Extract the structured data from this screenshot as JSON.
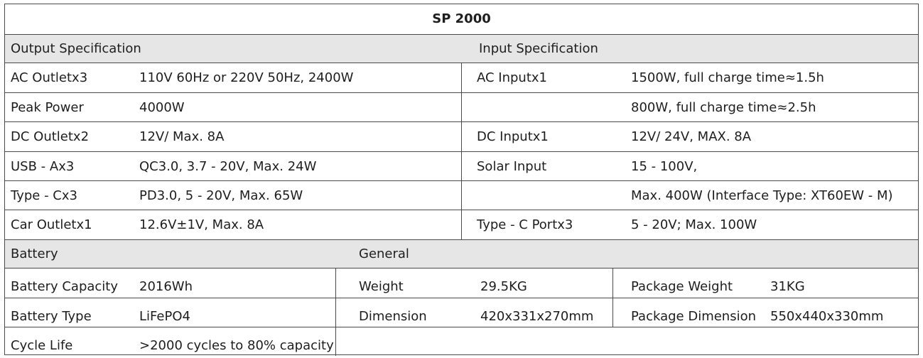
{
  "title": "SP 2000",
  "output": {
    "heading": "Output Specification",
    "rows": [
      {
        "label": "AC Outletx3",
        "value": "110V 60Hz or 220V 50Hz, 2400W"
      },
      {
        "label": "Peak Power",
        "value": "4000W"
      },
      {
        "label": "DC Outletx2",
        "value": "12V/ Max. 8A"
      },
      {
        "label": "USB - Ax3",
        "value": "QC3.0, 3.7 - 20V, Max. 24W"
      },
      {
        "label": "Type - Cx3",
        "value": "PD3.0, 5 - 20V, Max. 65W"
      },
      {
        "label": "Car Outletx1",
        "value": "12.6V±1V, Max. 8A"
      }
    ]
  },
  "input": {
    "heading": "Input Specification",
    "rows": [
      {
        "label": "AC Inputx1",
        "value": "1500W, full charge time≈1.5h"
      },
      {
        "label": "",
        "value": "800W, full charge time≈2.5h"
      },
      {
        "label": "DC Inputx1",
        "value": "12V/ 24V, MAX. 8A"
      },
      {
        "label": "Solar Input",
        "value": "15 - 100V,"
      },
      {
        "label": "",
        "value": "Max. 400W (Interface Type: XT60EW - M)"
      },
      {
        "label": "Type - C Portx3",
        "value": "5 - 20V; Max. 100W"
      }
    ]
  },
  "battery": {
    "heading": "Battery",
    "rows": [
      {
        "label": "Battery Capacity",
        "value": "2016Wh"
      },
      {
        "label": "Battery Type",
        "value": "LiFePO4"
      },
      {
        "label": "Cycle Life",
        "value": ">2000 cycles to 80% capacity"
      }
    ]
  },
  "general": {
    "heading": "General",
    "rows": [
      {
        "label": "Weight",
        "value": "29.5KG",
        "label2": "Package Weight",
        "value2": "31KG"
      },
      {
        "label": "Dimension",
        "value": "420x331x270mm",
        "label2": "Package Dimension",
        "value2": "550x440x330mm"
      }
    ]
  }
}
